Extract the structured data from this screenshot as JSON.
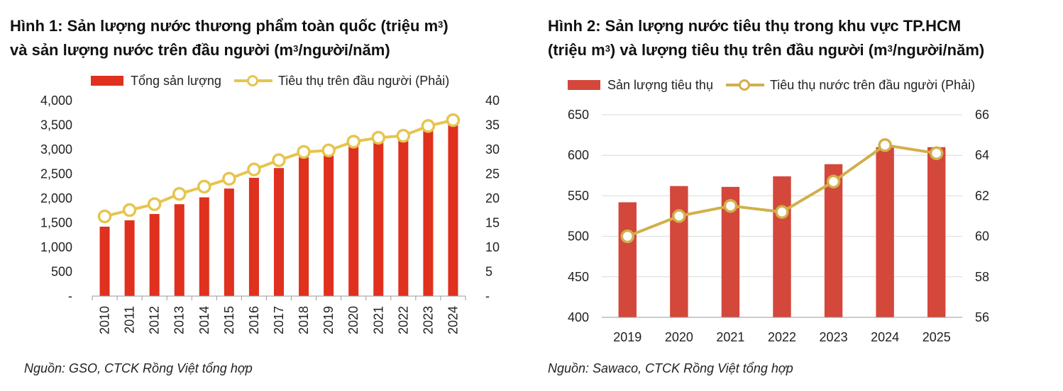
{
  "charts": [
    {
      "title_line1": "Hình 1: Sản lượng nước thương phẩm toàn quốc (triệu m",
      "title_sup1": "3",
      "title_line1_end": ")",
      "title_line2": "và sản lượng nước trên đầu người (m",
      "title_sup2": "3",
      "title_line2_end": "/người/năm)",
      "legend_bar": "Tổng sản lượng",
      "legend_line": "Tiêu thụ trên đầu người (Phải)",
      "source": "Nguồn: GSO, CTCK Rồng Việt tổng hợp"
    },
    {
      "title_line1": "Hình 2: Sản lượng nước tiêu thụ trong khu vực TP.HCM",
      "title_line2": "(triệu m",
      "title_sup2": "3",
      "title_line2_mid": ") và lượng tiêu thụ trên đầu người (m",
      "title_sup3": "3",
      "title_line2_end": "/người/năm)",
      "legend_bar": "Sản lượng tiêu thụ",
      "legend_line": "Tiêu thụ nước trên đầu người (Phải)",
      "source": "Nguồn: Sawaco, CTCK Rồng Việt tổng hợp"
    }
  ],
  "colors": {
    "bar1": "#e0301e",
    "bar2": "#d4473b",
    "line": "#e6c54e",
    "line2": "#d1b04a",
    "grid": "#d9d9d9",
    "axis": "#9a9a9a"
  },
  "chart_data": [
    {
      "type": "bar",
      "categories": [
        "2010",
        "2011",
        "2012",
        "2013",
        "2014",
        "2015",
        "2016",
        "2017",
        "2018",
        "2019",
        "2020",
        "2021",
        "2022",
        "2023",
        "2024"
      ],
      "series": [
        {
          "name": "Tổng sản lượng",
          "type": "bar",
          "axis": "left",
          "values": [
            1420,
            1550,
            1680,
            1880,
            2020,
            2200,
            2420,
            2620,
            2840,
            2950,
            3070,
            3160,
            3240,
            3400,
            3560
          ]
        },
        {
          "name": "Tiêu thụ trên đầu người (Phải)",
          "type": "line",
          "axis": "right",
          "values": [
            16.3,
            17.6,
            18.8,
            20.9,
            22.4,
            24.0,
            25.9,
            27.8,
            29.5,
            29.8,
            31.6,
            32.4,
            32.8,
            34.8,
            36.0
          ]
        }
      ],
      "ylim": [
        0,
        4000
      ],
      "y_ticks": [
        "-",
        "500",
        "1,000",
        "1,500",
        "2,000",
        "2,500",
        "3,000",
        "3,500",
        "4,000"
      ],
      "y2lim": [
        0,
        40
      ],
      "y2_ticks": [
        "-",
        "5",
        "10",
        "15",
        "20",
        "25",
        "30",
        "35",
        "40"
      ],
      "grid": false,
      "legend_position": "top"
    },
    {
      "type": "bar",
      "categories": [
        "2019",
        "2020",
        "2021",
        "2022",
        "2023",
        "2024",
        "2025"
      ],
      "series": [
        {
          "name": "Sản lượng tiêu thụ",
          "type": "bar",
          "axis": "left",
          "values": [
            542,
            562,
            561,
            574,
            589,
            610,
            610
          ]
        },
        {
          "name": "Tiêu thụ nước trên đầu người (Phải)",
          "type": "line",
          "axis": "right",
          "values": [
            60.0,
            61.0,
            61.5,
            61.2,
            62.7,
            64.5,
            64.1
          ]
        }
      ],
      "ylim": [
        400,
        650
      ],
      "y_ticks": [
        "400",
        "450",
        "500",
        "550",
        "600",
        "650"
      ],
      "y2lim": [
        56,
        66
      ],
      "y2_ticks": [
        "56",
        "58",
        "60",
        "62",
        "64",
        "66"
      ],
      "grid": true,
      "legend_position": "top"
    }
  ]
}
